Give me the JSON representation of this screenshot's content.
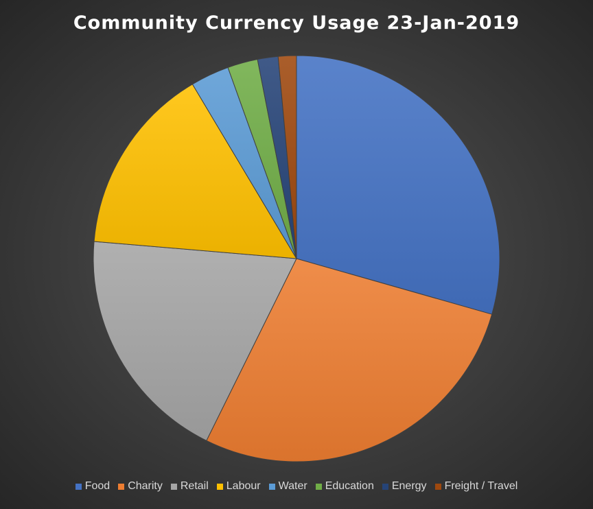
{
  "chart_data": {
    "type": "pie",
    "title": "Community Currency Usage 23-Jan-2019",
    "legend_position": "bottom",
    "slices": [
      {
        "label": "Food",
        "value": 30.6,
        "color": "#4472c4"
      },
      {
        "label": "Charity",
        "value": 29.0,
        "color": "#ed7d31"
      },
      {
        "label": "Retail",
        "value": 19.8,
        "color": "#a5a5a5"
      },
      {
        "label": "Labour",
        "value": 15.7,
        "color": "#ffc000"
      },
      {
        "label": "Water",
        "value": 3.2,
        "color": "#5b9bd5"
      },
      {
        "label": "Education",
        "value": 2.5,
        "color": "#70ad47"
      },
      {
        "label": "Energy",
        "value": 1.7,
        "color": "#264478"
      },
      {
        "label": "Freight / Travel",
        "value": 1.5,
        "color": "#9e480e"
      }
    ]
  }
}
